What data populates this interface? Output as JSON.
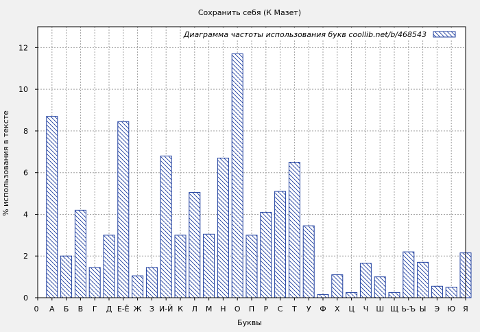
{
  "chart_data": {
    "type": "bar",
    "title": "Сохранить себя (К Мазет)",
    "xlabel": "Буквы",
    "ylabel": "% использования в тексте",
    "legend": "Диаграмма частоты использования букв  coollib.net/b/468543",
    "legend_position": "top-right",
    "grid": true,
    "ylim": [
      0,
      13
    ],
    "yticks": [
      0,
      2,
      4,
      6,
      8,
      10,
      12
    ],
    "xtick_labels": [
      "0",
      "А",
      "Б",
      "В",
      "Г",
      "Д",
      "Е-Ё",
      "Ж",
      "З",
      "И-Й",
      "К",
      "Л",
      "М",
      "Н",
      "О",
      "П",
      "Р",
      "С",
      "Т",
      "У",
      "Ф",
      "Х",
      "Ц",
      "Ч",
      "Ш",
      "Щ",
      "Ь-Ъ",
      "Ы",
      "Э",
      "Ю",
      "Я"
    ],
    "categories": [
      "А",
      "Б",
      "В",
      "Г",
      "Д",
      "Е-Ё",
      "Ж",
      "З",
      "И-Й",
      "К",
      "Л",
      "М",
      "Н",
      "О",
      "П",
      "Р",
      "С",
      "Т",
      "У",
      "Ф",
      "Х",
      "Ц",
      "Ч",
      "Ш",
      "Щ",
      "Ь-Ъ",
      "Ы",
      "Э",
      "Ю",
      "Я"
    ],
    "values": [
      8.7,
      2.0,
      4.2,
      1.45,
      3.0,
      8.45,
      1.05,
      1.45,
      6.8,
      3.0,
      5.05,
      3.05,
      6.7,
      11.7,
      3.0,
      4.1,
      5.1,
      6.5,
      3.45,
      0.15,
      1.1,
      0.25,
      1.65,
      1.0,
      0.25,
      2.2,
      1.7,
      0.55,
      0.5,
      2.15
    ],
    "colors": {
      "bar_stroke": "#1f3f9f",
      "hatch": "#1f3f9f",
      "bar_fill": "#ffffff",
      "grid": "#a0a0a0",
      "background": "#f1f1f1"
    }
  }
}
